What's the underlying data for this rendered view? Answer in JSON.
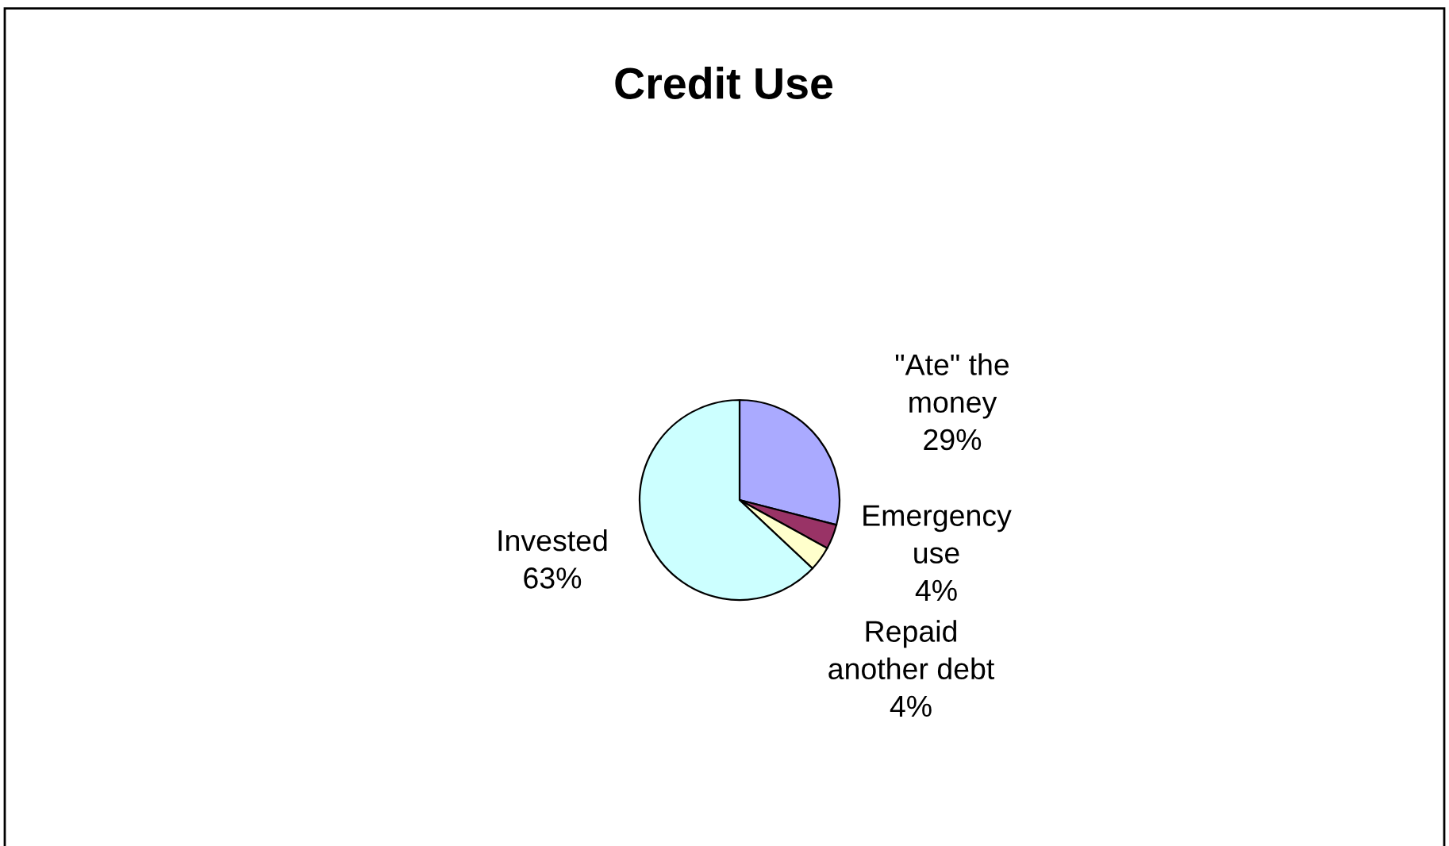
{
  "chart_data": {
    "type": "pie",
    "title": "Credit Use",
    "categories": [
      "\"Ate\" the\nmoney",
      "Emergency\nuse",
      "Repaid\nanother debt",
      "Invested"
    ],
    "values": [
      29,
      4,
      4,
      63
    ],
    "colors": [
      "#aaaaff",
      "#993366",
      "#ffffcc",
      "#ccffff"
    ],
    "value_labels": [
      "29%",
      "4%",
      "4%",
      "63%"
    ]
  }
}
